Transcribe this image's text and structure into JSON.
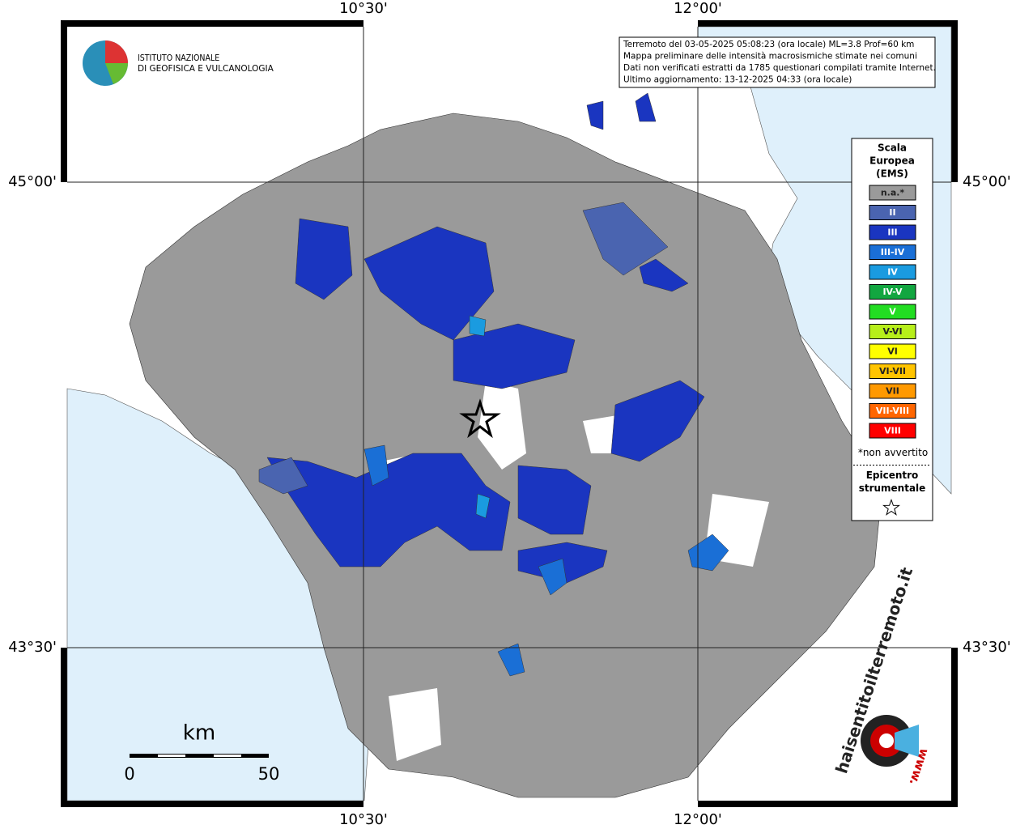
{
  "header": {
    "institute": [
      "ISTITUTO NAZIONALE",
      "DI GEOFISICA E VULCANOLOGIA"
    ]
  },
  "info_box": {
    "lines": [
      "Terremoto del 03-05-2025 05:08:23 (ora locale) ML=3.8 Prof=60 km",
      "Mappa preliminare delle intensità macrosismiche stimate nei comuni",
      "Dati non verificati estratti da 1785 questionari compilati tramite Internet.",
      "Ultimo aggiornamento: 13-12-2025 04:33 (ora locale)"
    ]
  },
  "axes": {
    "top": [
      "10°30'",
      "12°00'"
    ],
    "bottom": [
      "10°30'",
      "12°00'"
    ],
    "left": [
      "45°00'",
      "43°30'"
    ],
    "right": [
      "45°00'",
      "43°30'"
    ]
  },
  "legend": {
    "title": [
      "Scala",
      "Europea",
      "(EMS)"
    ],
    "items": [
      {
        "label": "n.a.*",
        "color": "#9a9a9a"
      },
      {
        "label": "II",
        "color": "#4a64b0"
      },
      {
        "label": "III",
        "color": "#1a35c0"
      },
      {
        "label": "III-IV",
        "color": "#1a6fd6"
      },
      {
        "label": "IV",
        "color": "#1a9be0"
      },
      {
        "label": "IV-V",
        "color": "#12a640"
      },
      {
        "label": "V",
        "color": "#22dd22"
      },
      {
        "label": "V-VI",
        "color": "#b7ef1a"
      },
      {
        "label": "VI",
        "color": "#ffff00"
      },
      {
        "label": "VI-VII",
        "color": "#ffc400"
      },
      {
        "label": "VII",
        "color": "#ff9900"
      },
      {
        "label": "VII-VIII",
        "color": "#ff6600"
      },
      {
        "label": "VIII",
        "color": "#ff0000"
      }
    ],
    "note": "*non avvertito",
    "epicenter_title": [
      "Epicentro",
      "strumentale"
    ]
  },
  "scale_bar": {
    "unit": "km",
    "labels": [
      0,
      50
    ]
  },
  "logo": {
    "text": "haisentitoilterremoto.it",
    "url_prefix": "www."
  }
}
